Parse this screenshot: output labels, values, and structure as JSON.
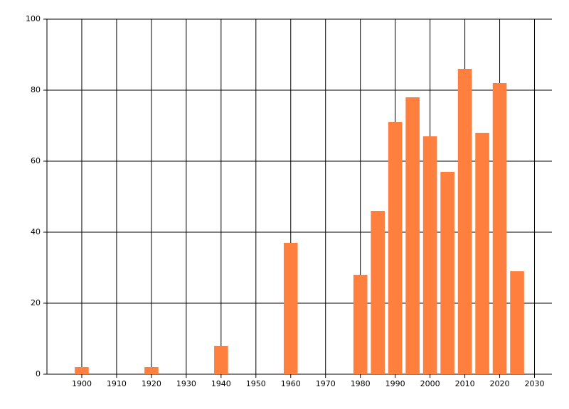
{
  "chart_data": {
    "type": "bar",
    "x": [
      1900,
      1920,
      1940,
      1960,
      1980,
      1985,
      1990,
      1995,
      2000,
      2005,
      2010,
      2015,
      2020,
      2025
    ],
    "values": [
      2,
      2,
      8,
      37,
      28,
      46,
      71,
      78,
      67,
      57,
      86,
      68,
      82,
      29
    ],
    "color": "#ff7f3f",
    "xlim": [
      1890,
      2035
    ],
    "xticks": [
      1900,
      1910,
      1920,
      1930,
      1940,
      1950,
      1960,
      1970,
      1980,
      1990,
      2000,
      2010,
      2020,
      2030
    ],
    "ylim": [
      0,
      100
    ],
    "yticks": [
      0,
      20,
      40,
      60,
      80,
      100
    ],
    "grid": true
  }
}
